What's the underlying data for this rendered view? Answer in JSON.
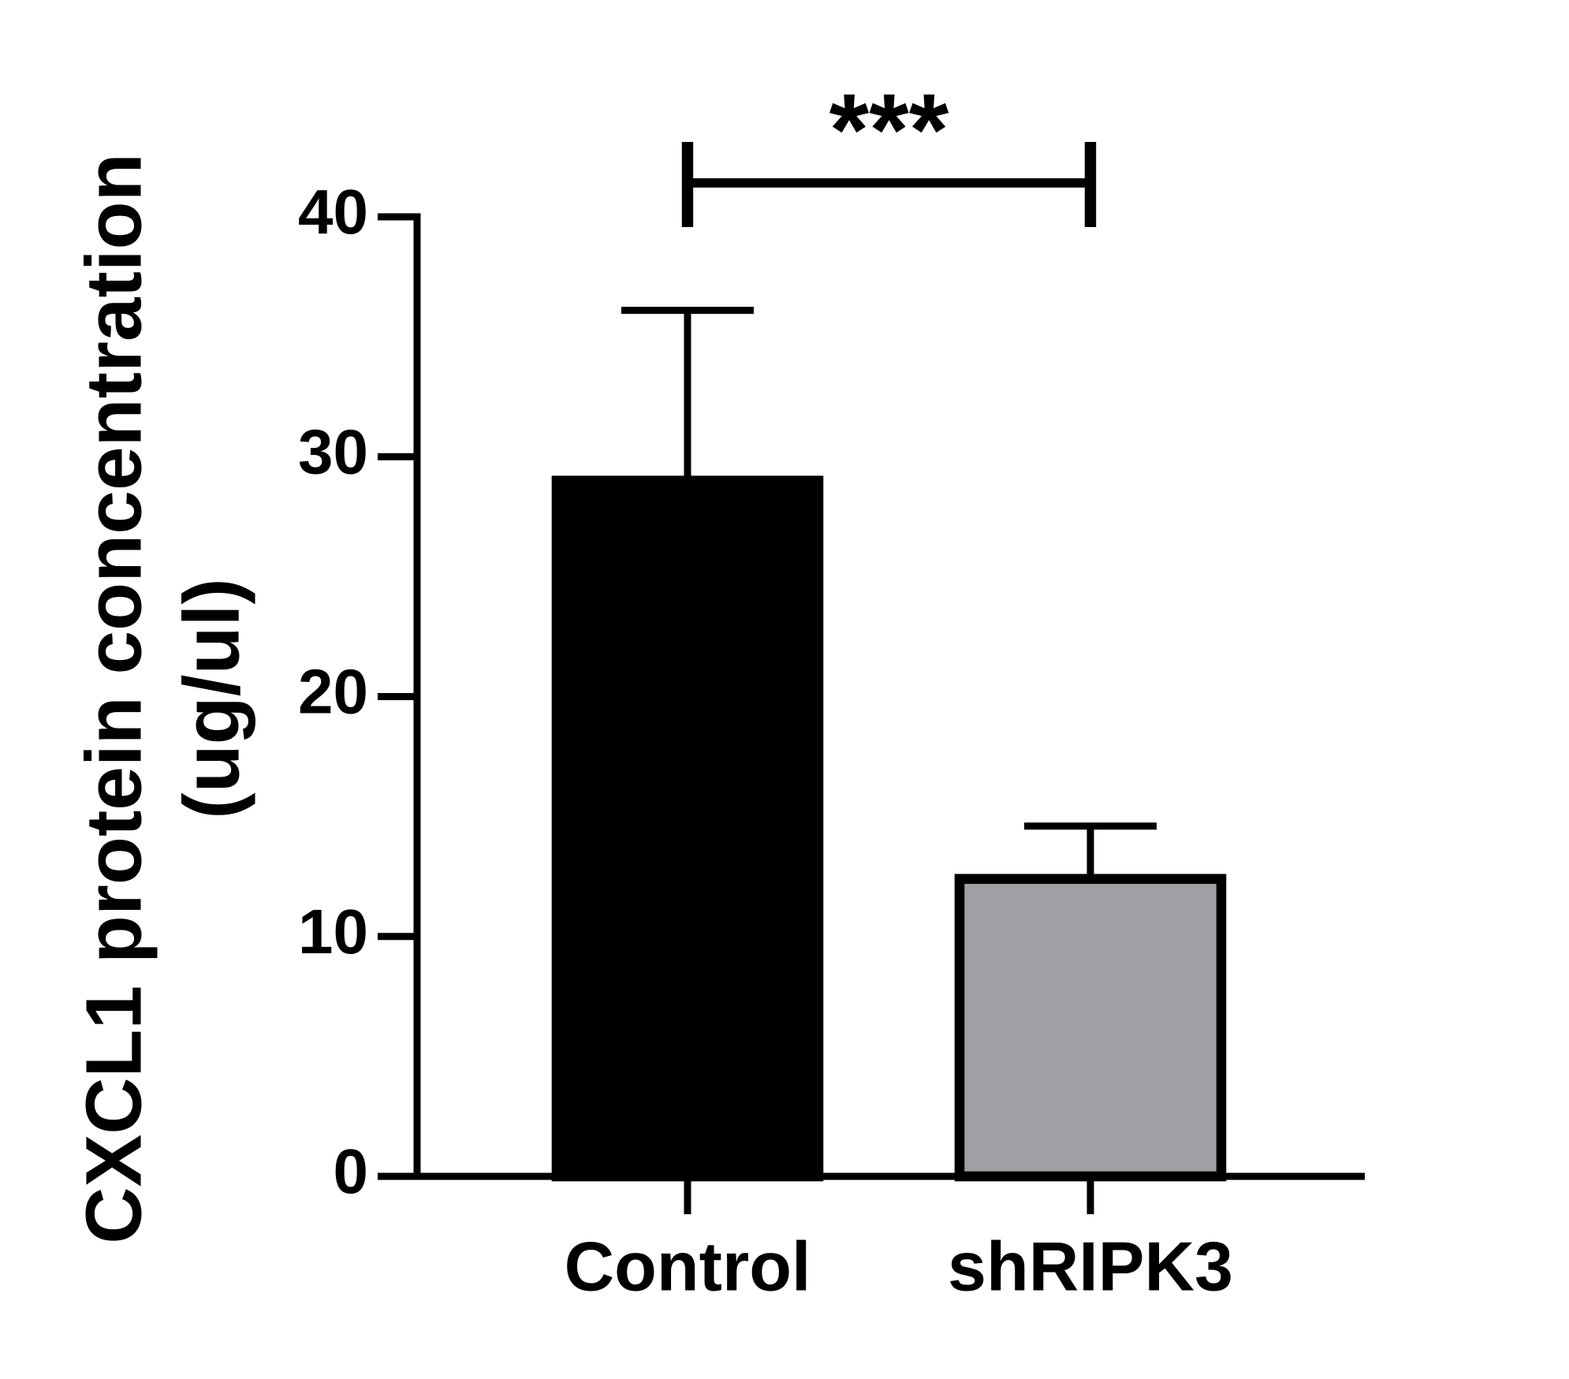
{
  "chart_data": {
    "type": "bar",
    "ylabel": [
      "CXCL1 protein concentration",
      "(ug/ul)"
    ],
    "categories": [
      "Control",
      "shRIPK3"
    ],
    "values": [
      29,
      12.4
    ],
    "errors": [
      7.1,
      2.2
    ],
    "colors": [
      "#000000",
      "#a0a0a4"
    ],
    "ylim": [
      0,
      40
    ],
    "yticks": [
      0,
      10,
      20,
      30,
      40
    ],
    "annotations": [
      {
        "text": "***"
      }
    ]
  }
}
